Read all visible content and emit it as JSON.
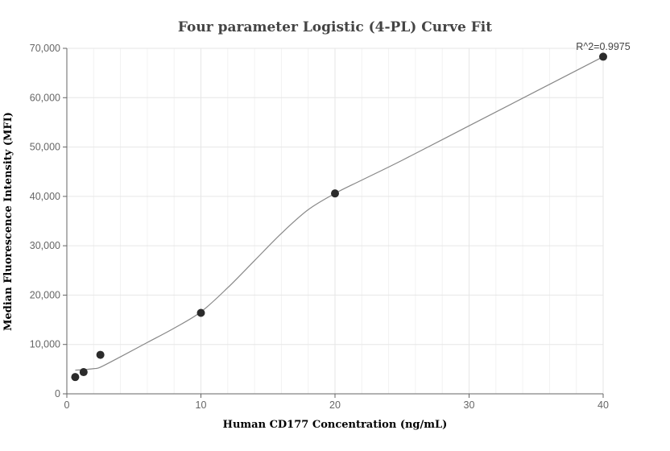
{
  "chart_data": {
    "type": "scatter",
    "title": "Four parameter Logistic (4-PL) Curve Fit",
    "xlabel": "Human CD177 Concentration (ng/mL)",
    "ylabel": "Median Fluorescence Intensity (MFI)",
    "xlim": [
      0,
      40
    ],
    "ylim": [
      0,
      70000
    ],
    "x_ticks": [
      0,
      10,
      20,
      30,
      40
    ],
    "x_tick_labels": [
      "0",
      "10",
      "20",
      "30",
      "40"
    ],
    "y_ticks": [
      0,
      10000,
      20000,
      30000,
      40000,
      50000,
      60000,
      70000
    ],
    "y_tick_labels": [
      "0",
      "10,000",
      "20,000",
      "30,000",
      "40,000",
      "50,000",
      "60,000",
      "70,000"
    ],
    "grid": true,
    "annotation": "R^2=0.9975",
    "points": [
      {
        "x": 0.625,
        "y": 3400
      },
      {
        "x": 1.25,
        "y": 4400
      },
      {
        "x": 2.5,
        "y": 7900
      },
      {
        "x": 10,
        "y": 16400
      },
      {
        "x": 20,
        "y": 40600
      },
      {
        "x": 40,
        "y": 68300
      }
    ],
    "fit_curve": [
      {
        "x": 0.625,
        "y": 4800
      },
      {
        "x": 1.25,
        "y": 4900
      },
      {
        "x": 2,
        "y": 5100
      },
      {
        "x": 2.5,
        "y": 5400
      },
      {
        "x": 4,
        "y": 7500
      },
      {
        "x": 6,
        "y": 10400
      },
      {
        "x": 8,
        "y": 13300
      },
      {
        "x": 10,
        "y": 16600
      },
      {
        "x": 12,
        "y": 21500
      },
      {
        "x": 14,
        "y": 27000
      },
      {
        "x": 16,
        "y": 32500
      },
      {
        "x": 18,
        "y": 37300
      },
      {
        "x": 20,
        "y": 40600
      },
      {
        "x": 22,
        "y": 43300
      },
      {
        "x": 25,
        "y": 47300
      },
      {
        "x": 30,
        "y": 54300
      },
      {
        "x": 35,
        "y": 61300
      },
      {
        "x": 40,
        "y": 68300
      }
    ],
    "colors": {
      "point": "#2b2b2b",
      "curve": "#888888",
      "grid": "#e6e6e6",
      "axis": "#666666"
    }
  }
}
